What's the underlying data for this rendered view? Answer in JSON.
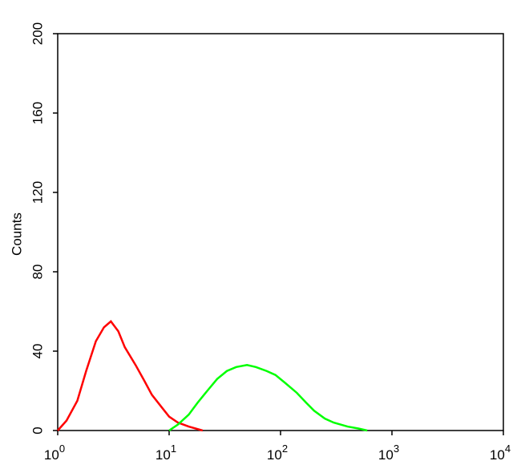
{
  "chart_data": {
    "type": "line",
    "ylabel": "Counts",
    "xscale": "log",
    "xlim": [
      1,
      10000
    ],
    "ylim": [
      0,
      200
    ],
    "yticks": [
      0,
      40,
      80,
      120,
      160,
      200
    ],
    "xticks": [
      {
        "value": 1,
        "label": "10",
        "exponent": "0"
      },
      {
        "value": 10,
        "label": "10",
        "exponent": "1"
      },
      {
        "value": 100,
        "label": "10",
        "exponent": "2"
      },
      {
        "value": 1000,
        "label": "10",
        "exponent": "3"
      },
      {
        "value": 10000,
        "label": "10",
        "exponent": "4"
      }
    ],
    "series": [
      {
        "color": "#ff0000",
        "x": [
          1,
          1.2,
          1.5,
          1.8,
          2.2,
          2.6,
          3,
          3.5,
          4,
          5,
          6,
          7,
          8.5,
          10,
          12,
          15,
          20
        ],
        "values": [
          0,
          5,
          15,
          30,
          45,
          52,
          55,
          50,
          42,
          33,
          25,
          18,
          12,
          7,
          4,
          2,
          0
        ]
      },
      {
        "color": "#00ff00",
        "x": [
          10,
          12,
          15,
          18,
          22,
          27,
          33,
          40,
          50,
          60,
          75,
          90,
          110,
          140,
          170,
          200,
          250,
          300,
          400,
          500,
          600
        ],
        "values": [
          0,
          3,
          8,
          14,
          20,
          26,
          30,
          32,
          33,
          32,
          30,
          28,
          24,
          19,
          14,
          10,
          6,
          4,
          2,
          1,
          0
        ]
      }
    ]
  }
}
